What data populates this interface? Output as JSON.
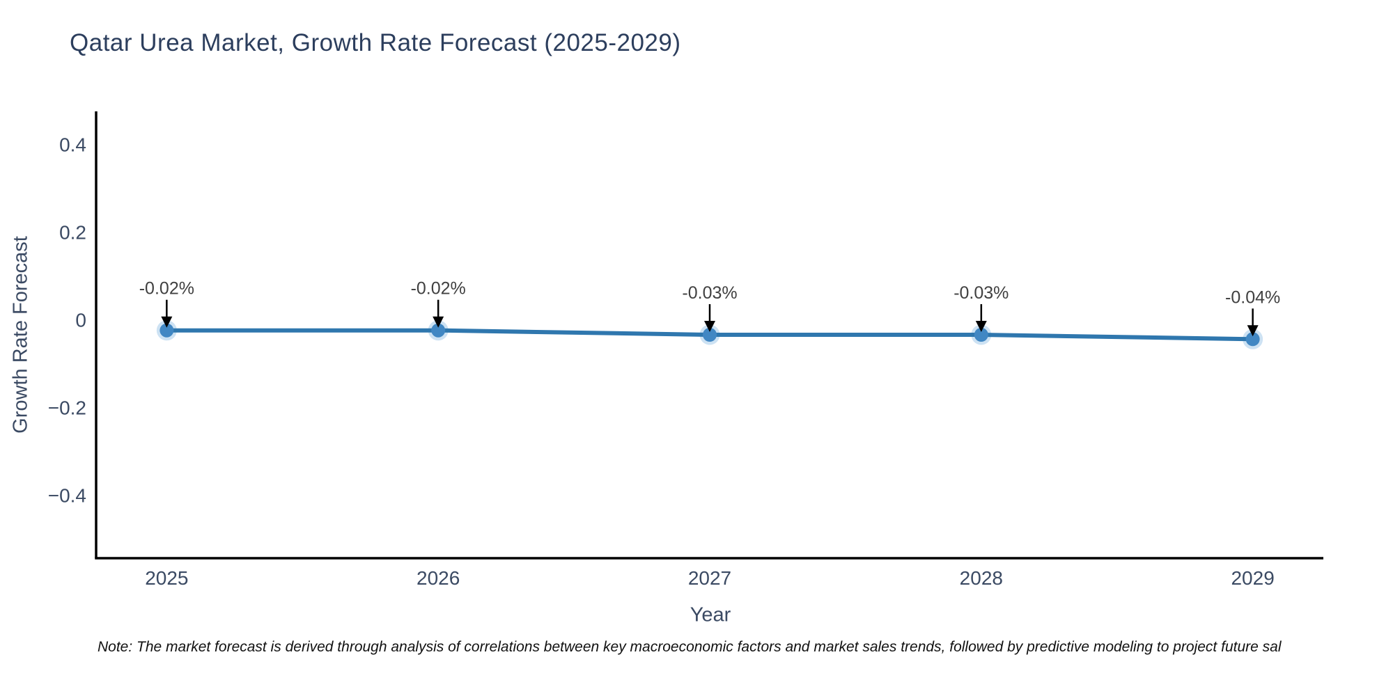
{
  "chart_data": {
    "type": "line",
    "title": "Qatar Urea Market, Growth Rate Forecast (2025-2029)",
    "xlabel": "Year",
    "ylabel": "Growth Rate Forecast",
    "x": [
      2025,
      2026,
      2027,
      2028,
      2029
    ],
    "series": [
      {
        "name": "Growth Rate Forecast",
        "values": [
          -0.02,
          -0.02,
          -0.03,
          -0.03,
          -0.04
        ]
      }
    ],
    "point_labels": [
      "-0.02%",
      "-0.02%",
      "-0.03%",
      "-0.03%",
      "-0.04%"
    ],
    "xticks": [
      {
        "v": 2025,
        "label": "2025"
      },
      {
        "v": 2026,
        "label": "2026"
      },
      {
        "v": 2027,
        "label": "2027"
      },
      {
        "v": 2028,
        "label": "2028"
      },
      {
        "v": 2029,
        "label": "2029"
      }
    ],
    "yticks": [
      {
        "v": 0.4,
        "label": "0.4"
      },
      {
        "v": 0.2,
        "label": "0.2"
      },
      {
        "v": 0,
        "label": "0"
      },
      {
        "v": -0.2,
        "label": "−0.2"
      },
      {
        "v": -0.4,
        "label": "−0.4"
      }
    ],
    "xlim": [
      2024.74,
      2029.26
    ],
    "ylim": [
      -0.54,
      0.48
    ],
    "grid": false,
    "legend_position": "none",
    "colors": {
      "line": "#2f77ae",
      "marker": "#4187c3",
      "marker_halo": "#cde2f3",
      "axis": "#000000",
      "tick_text": "#3b4a63",
      "annotation_text": "#404040",
      "arrow": "#000000"
    }
  },
  "footnote": "Note: The market forecast is derived through analysis of correlations between key macroeconomic factors and market sales trends, followed by predictive modeling to project future sal"
}
